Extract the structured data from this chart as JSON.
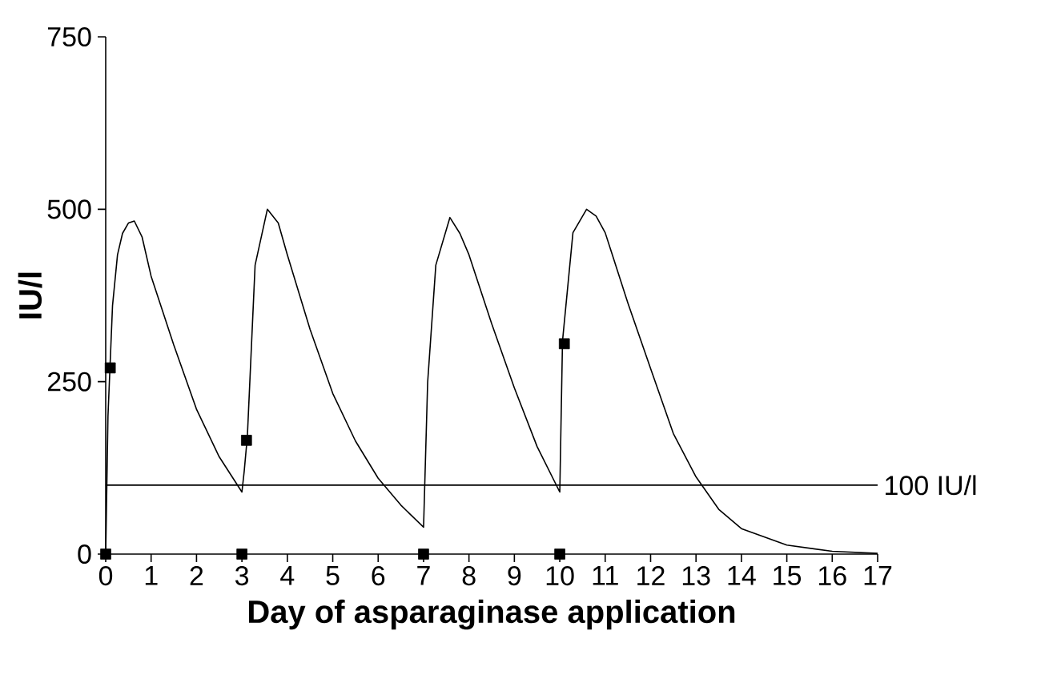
{
  "chart_data": {
    "type": "line",
    "xlabel": "Day of asparaginase application",
    "ylabel": "IU/l",
    "xlim": [
      0,
      17
    ],
    "ylim": [
      0,
      750
    ],
    "xticks": [
      0,
      1,
      2,
      3,
      4,
      5,
      6,
      7,
      8,
      9,
      10,
      11,
      12,
      13,
      14,
      15,
      16,
      17
    ],
    "yticks": [
      0,
      250,
      500,
      750
    ],
    "grid": false,
    "series": [
      {
        "color": "#000000",
        "marker": "none",
        "x": [
          0,
          0.05,
          0.15,
          0.26,
          0.37,
          0.5,
          0.63,
          0.8,
          1,
          1.5,
          2,
          2.5,
          3,
          3.05,
          3.12,
          3.29,
          3.56,
          3.8,
          4,
          4.5,
          5,
          5.5,
          6,
          6.5,
          7,
          7.09,
          7.27,
          7.58,
          7.8,
          8,
          8.5,
          9,
          9.5,
          10,
          10.06,
          10.29,
          10.59,
          10.8,
          11,
          11.5,
          12,
          12.5,
          13,
          13.5,
          14,
          15,
          16,
          17
        ],
        "values": [
          0,
          200,
          360,
          434,
          465,
          480,
          483,
          460,
          403,
          303,
          210,
          141,
          90,
          120,
          171,
          419,
          500,
          480,
          434,
          326,
          233,
          164,
          110,
          71,
          39,
          249,
          419,
          488,
          465,
          434,
          334,
          241,
          156,
          90,
          309,
          466,
          500,
          490,
          466,
          364,
          269,
          175,
          112,
          65,
          37,
          13,
          4,
          1
        ]
      },
      {
        "type": "scatter",
        "color": "#000000",
        "marker": "square",
        "x": [
          0.1,
          3.1,
          10.1,
          0,
          3,
          7,
          10
        ],
        "values": [
          270,
          165,
          305,
          0,
          0,
          0,
          0
        ]
      }
    ],
    "ref_lines": [
      {
        "axis": "y",
        "value": 100,
        "label": "100 IU/l",
        "color": "#000000"
      }
    ]
  }
}
